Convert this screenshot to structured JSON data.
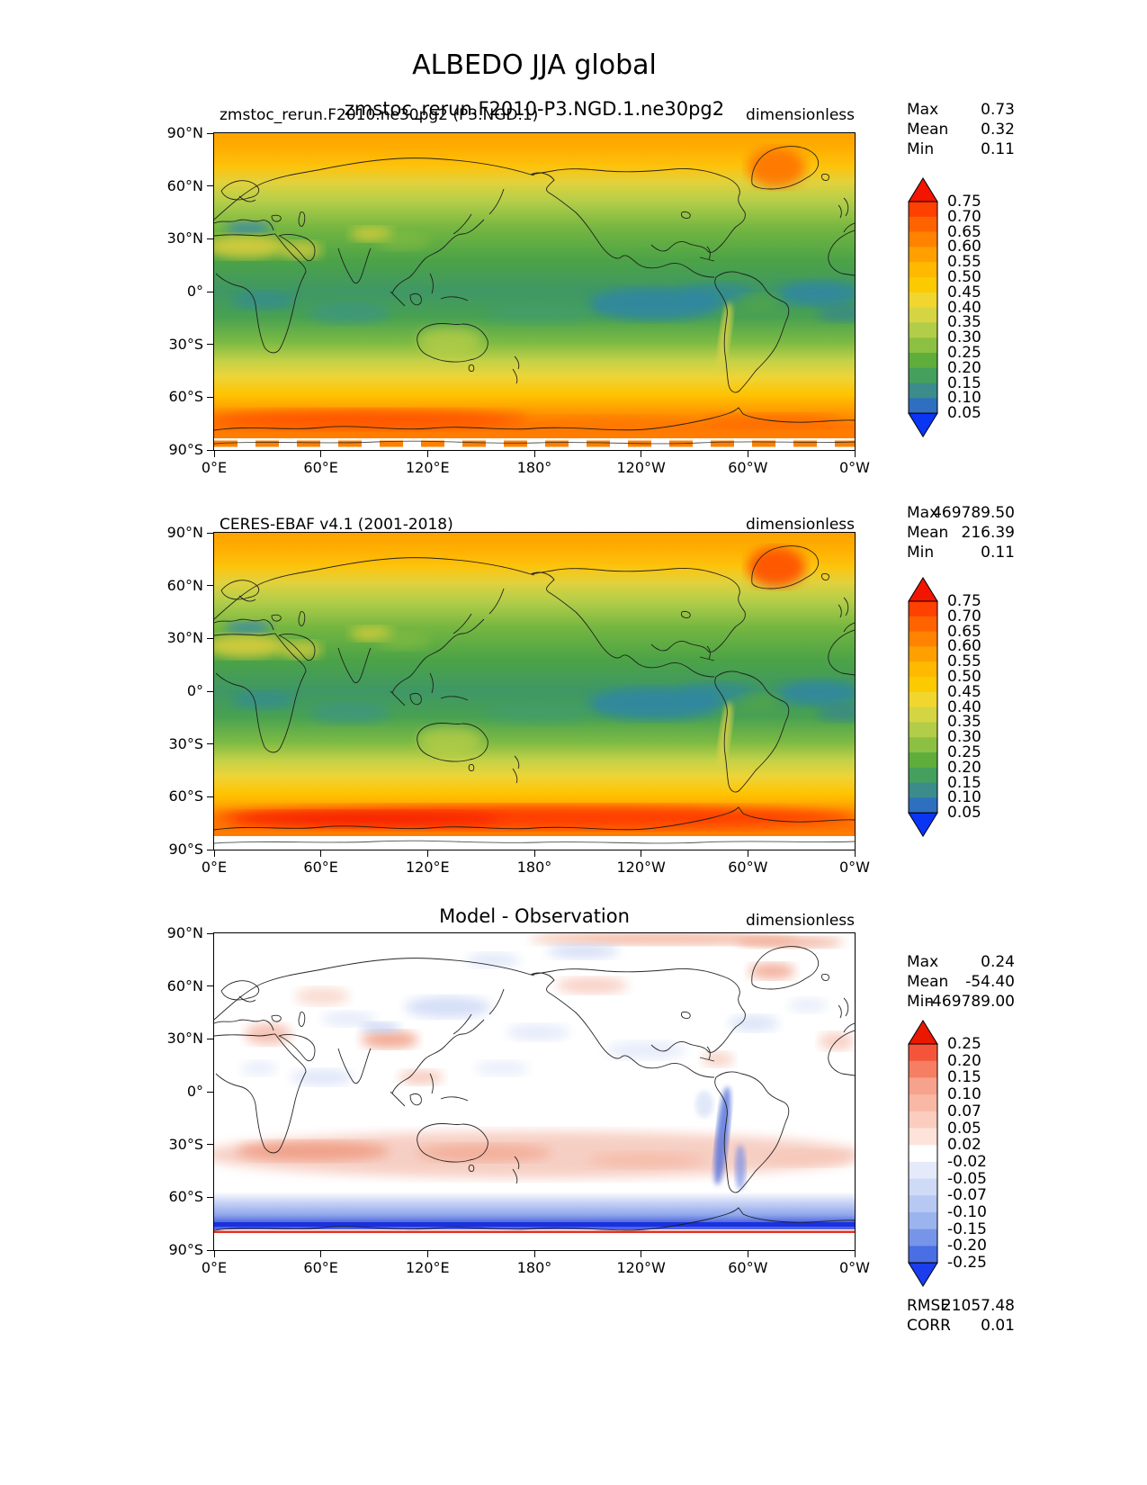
{
  "figure_title": "ALBEDO JJA global",
  "labels": {
    "max": "Max",
    "mean": "Mean",
    "min": "Min",
    "rmse": "RMSE",
    "corr": "CORR"
  },
  "panels": [
    {
      "id": "model",
      "title_left": "zmstoc_rerun.F2010.ne30pg2 (P3.NGD.1)",
      "title_center": "zmstoc_rerun.F2010-P3.NGD.1.ne30pg2",
      "units": "dimensionless",
      "stats": {
        "max": "0.73",
        "mean": "0.32",
        "min": "0.11"
      }
    },
    {
      "id": "observation",
      "title_left": "CERES-EBAF v4.1 (2001-2018)",
      "title_center": "",
      "units": "dimensionless",
      "stats": {
        "max": "469789.50",
        "mean": "216.39",
        "min": "0.11"
      }
    },
    {
      "id": "difference",
      "title_left": "",
      "title_center": "Model - Observation",
      "units": "dimensionless",
      "stats": {
        "max": "0.24",
        "mean": "-54.40",
        "min": "-469789.00",
        "rmse": "21057.48",
        "corr": "0.01"
      }
    }
  ],
  "axes": {
    "lat_labels": [
      "90°N",
      "60°N",
      "30°N",
      "0°",
      "30°S",
      "60°S",
      "90°S"
    ],
    "lon_labels": [
      "0°E",
      "60°E",
      "120°E",
      "180°",
      "120°W",
      "60°W",
      "0°W"
    ]
  },
  "colorbars": {
    "albedo": {
      "ticks": [
        "0.75",
        "0.70",
        "0.65",
        "0.60",
        "0.55",
        "0.50",
        "0.45",
        "0.40",
        "0.35",
        "0.30",
        "0.25",
        "0.20",
        "0.15",
        "0.10",
        "0.05"
      ],
      "extend_top": "#f21500",
      "extend_bottom": "#0a35f5",
      "bands": [
        "#fe4000",
        "#ff6300",
        "#ff8300",
        "#ffa000",
        "#ffb900",
        "#fcca00",
        "#f0d62e",
        "#d5d544",
        "#b2cd48",
        "#8cc043",
        "#5fae3c",
        "#44a05c",
        "#3a8d8a",
        "#2e6fc0"
      ]
    },
    "diff": {
      "ticks": [
        "0.25",
        "0.20",
        "0.15",
        "0.10",
        "0.07",
        "0.05",
        "0.02",
        "-0.02",
        "-0.05",
        "-0.07",
        "-0.10",
        "-0.15",
        "-0.20",
        "-0.25"
      ],
      "extend_top": "#ea1800",
      "extend_bottom": "#1b3ded",
      "bands": [
        "#f4553a",
        "#f57e63",
        "#f7a28c",
        "#f9b8a6",
        "#fbcdbf",
        "#fde3da",
        "#ffffff",
        "#e4eaf9",
        "#cfdaf6",
        "#b7c9f2",
        "#9cb4ee",
        "#7795e8",
        "#4a6ee3"
      ]
    }
  },
  "chart_data": [
    {
      "type": "heatmap",
      "panel": "top",
      "title": "zmstoc_rerun.F2010-P3.NGD.1.ne30pg2",
      "variable": "ALBEDO",
      "season": "JJA",
      "region": "global",
      "units": "dimensionless",
      "projection": "equirectangular 0E-360E, 90N-90S",
      "lon_ticks": [
        "0°E",
        "60°E",
        "120°E",
        "180°",
        "120°W",
        "60°W",
        "0°W"
      ],
      "lat_ticks": [
        "90°N",
        "60°N",
        "30°N",
        "0°",
        "30°S",
        "60°S",
        "90°S"
      ],
      "contour_levels": [
        0.05,
        0.1,
        0.15,
        0.2,
        0.25,
        0.3,
        0.35,
        0.4,
        0.45,
        0.5,
        0.55,
        0.6,
        0.65,
        0.7,
        0.75
      ],
      "palette": "blue-teal-green-yellow-orange-red, extend both",
      "stats": {
        "max": 0.73,
        "mean": 0.32,
        "min": 0.11
      },
      "zonal_structure": "orange ~0.55 at Arctic, green ~0.3 midlatitudes, teal-blue ~0.1-0.2 tropical oceans, yellow ~0.45 at 45S, orange-red ~0.6-0.7 Southern Ocean ice, white missing-data band at ~85-90S"
    },
    {
      "type": "heatmap",
      "panel": "middle",
      "title": "CERES-EBAF v4.1 (2001-2018)",
      "variable": "ALBEDO",
      "season": "JJA",
      "region": "global",
      "units": "dimensionless",
      "contour_levels": [
        0.05,
        0.1,
        0.15,
        0.2,
        0.25,
        0.3,
        0.35,
        0.4,
        0.45,
        0.5,
        0.55,
        0.6,
        0.65,
        0.7,
        0.75
      ],
      "palette": "blue-teal-green-yellow-orange-red, extend both",
      "stats": {
        "max": 469789.5,
        "mean": 216.39,
        "min": 0.11
      },
      "zonal_structure": "similar to model but red band ~0.75 over 60S-75S and bright orange Greenland; white band at ~85-90S"
    },
    {
      "type": "heatmap",
      "panel": "bottom",
      "title": "Model - Observation",
      "units": "dimensionless",
      "contour_levels": [
        -0.25,
        -0.2,
        -0.15,
        -0.1,
        -0.07,
        -0.05,
        -0.02,
        0.02,
        0.05,
        0.07,
        0.1,
        0.15,
        0.2,
        0.25
      ],
      "palette": "red-white-blue (positive red, negative blue), extend both",
      "stats": {
        "max": 0.24,
        "mean": -54.4,
        "min": -469789.0,
        "rmse": 21057.48,
        "corr": 0.01
      },
      "zonal_structure": "mostly near zero (white); light red band +0.05 around 35S-55S; scattered ±0.05 patches; strong negative blue band -0.1 to -0.25 over 55S-75S with thin red stripe near 78S; blue streak along Andes"
    }
  ]
}
